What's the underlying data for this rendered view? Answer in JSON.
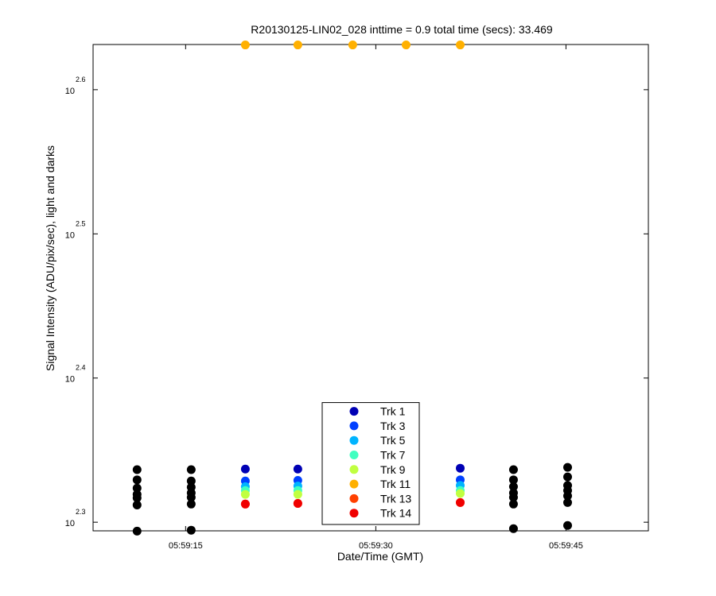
{
  "chart_data": {
    "type": "scatter",
    "title": "R20130125-LIN02_028 inttime = 0.9 total time (secs): 33.469",
    "x_label": "Date/Time (GMT)",
    "y_label": "Signal Intensity (ADU/pix/sec), light and darks",
    "log_y": true,
    "legend_position": "lower center",
    "xlim": [
      7.7,
      51.5
    ],
    "xticks": [
      {
        "value": 15,
        "label": "05:59:15"
      },
      {
        "value": 30,
        "label": "05:59:30"
      },
      {
        "value": 45,
        "label": "05:59:45"
      }
    ],
    "ylim": [
      196.8,
      427.9
    ],
    "yticks": [
      {
        "value": 199.53,
        "label": "10",
        "exponent": "2.3"
      },
      {
        "value": 251.19,
        "label": "10",
        "exponent": "2.4"
      },
      {
        "value": 316.23,
        "label": "10",
        "exponent": "2.5"
      },
      {
        "value": 398.11,
        "label": "10",
        "exponent": "2.6"
      }
    ],
    "series": [
      {
        "color": "#000000",
        "x": [
          11.17,
          11.17,
          11.17,
          11.17,
          11.17,
          11.17,
          11.17,
          15.44,
          15.44,
          15.44,
          15.44,
          15.44,
          15.44,
          15.44,
          40.86,
          40.86,
          40.86,
          40.86,
          40.86,
          40.86,
          40.86,
          45.13,
          45.13,
          45.13,
          45.13,
          45.13,
          45.13,
          45.13
        ],
        "values": [
          217.0,
          213.5,
          210.7,
          208.6,
          207.4,
          205.1,
          196.7,
          217.0,
          213.1,
          211.0,
          209.1,
          207.6,
          205.4,
          197.0,
          217.0,
          213.5,
          211.2,
          209.1,
          207.6,
          205.4,
          197.5,
          217.8,
          214.5,
          211.6,
          209.9,
          208.1,
          205.9,
          198.5
        ]
      },
      {
        "name": "Trk 1",
        "color": "#0000b4",
        "x": [
          19.71,
          23.85,
          28.18,
          32.39,
          36.66
        ],
        "values": [
          217.2,
          217.2,
          null,
          null,
          217.5
        ]
      },
      {
        "name": "Trk 3",
        "color": "#0040ff",
        "x": [
          19.71,
          23.85,
          28.18,
          32.39,
          36.66
        ],
        "values": [
          213.1,
          213.3,
          null,
          null,
          213.5
        ]
      },
      {
        "name": "Trk 5",
        "color": "#00b4ff",
        "x": [
          19.71,
          23.85,
          28.18,
          32.39,
          36.66
        ],
        "values": [
          211.2,
          211.4,
          null,
          null,
          211.6
        ]
      },
      {
        "name": "Trk 7",
        "color": "#40ffc0",
        "x": [
          19.71,
          23.85,
          28.18,
          32.39,
          36.66
        ],
        "values": [
          209.9,
          209.9,
          null,
          null,
          209.9
        ]
      },
      {
        "name": "Trk 9",
        "color": "#c0ff40",
        "x": [
          19.71,
          23.85,
          28.18,
          32.39,
          36.66
        ],
        "values": [
          208.6,
          208.6,
          null,
          null,
          208.9
        ]
      },
      {
        "name": "Trk 11",
        "color": "#ffb000",
        "x": [
          19.71,
          23.85,
          28.18,
          32.39,
          36.66
        ],
        "values": [
          427.6,
          427.6,
          427.6,
          427.6,
          427.6
        ]
      },
      {
        "name": "Trk 13",
        "color": "#ff4000",
        "x": [
          19.71,
          23.85,
          28.18,
          32.39,
          36.66
        ],
        "values": [
          205.4,
          205.6,
          null,
          null,
          205.9
        ]
      },
      {
        "name": "Trk 14",
        "color": "#f00000",
        "x": [
          19.71,
          23.85,
          28.18,
          32.39,
          36.66
        ],
        "values": [
          205.4,
          205.6,
          null,
          null,
          205.9
        ]
      }
    ]
  }
}
